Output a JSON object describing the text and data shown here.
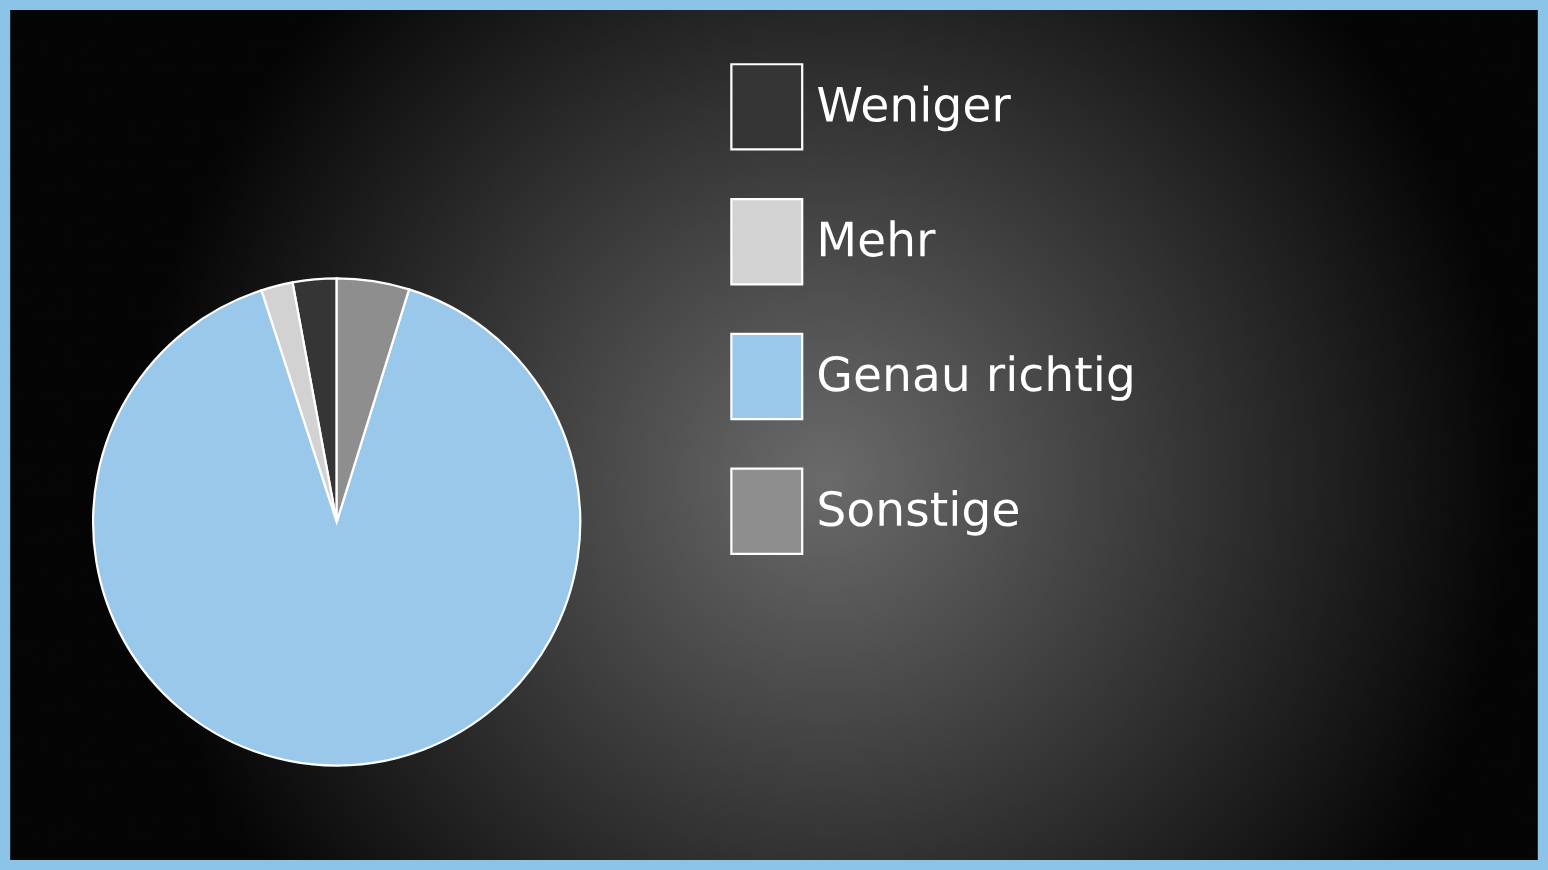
{
  "chart_data": {
    "type": "pie",
    "categories": [
      "Weniger",
      "Mehr",
      "Genau richtig",
      "Sonstige"
    ],
    "values": [
      2.9,
      2.1,
      90.2,
      4.8
    ],
    "colors": [
      "#353535",
      "#d2d2d2",
      "#99c8ea",
      "#8e8e8e"
    ],
    "legend": "right"
  }
}
